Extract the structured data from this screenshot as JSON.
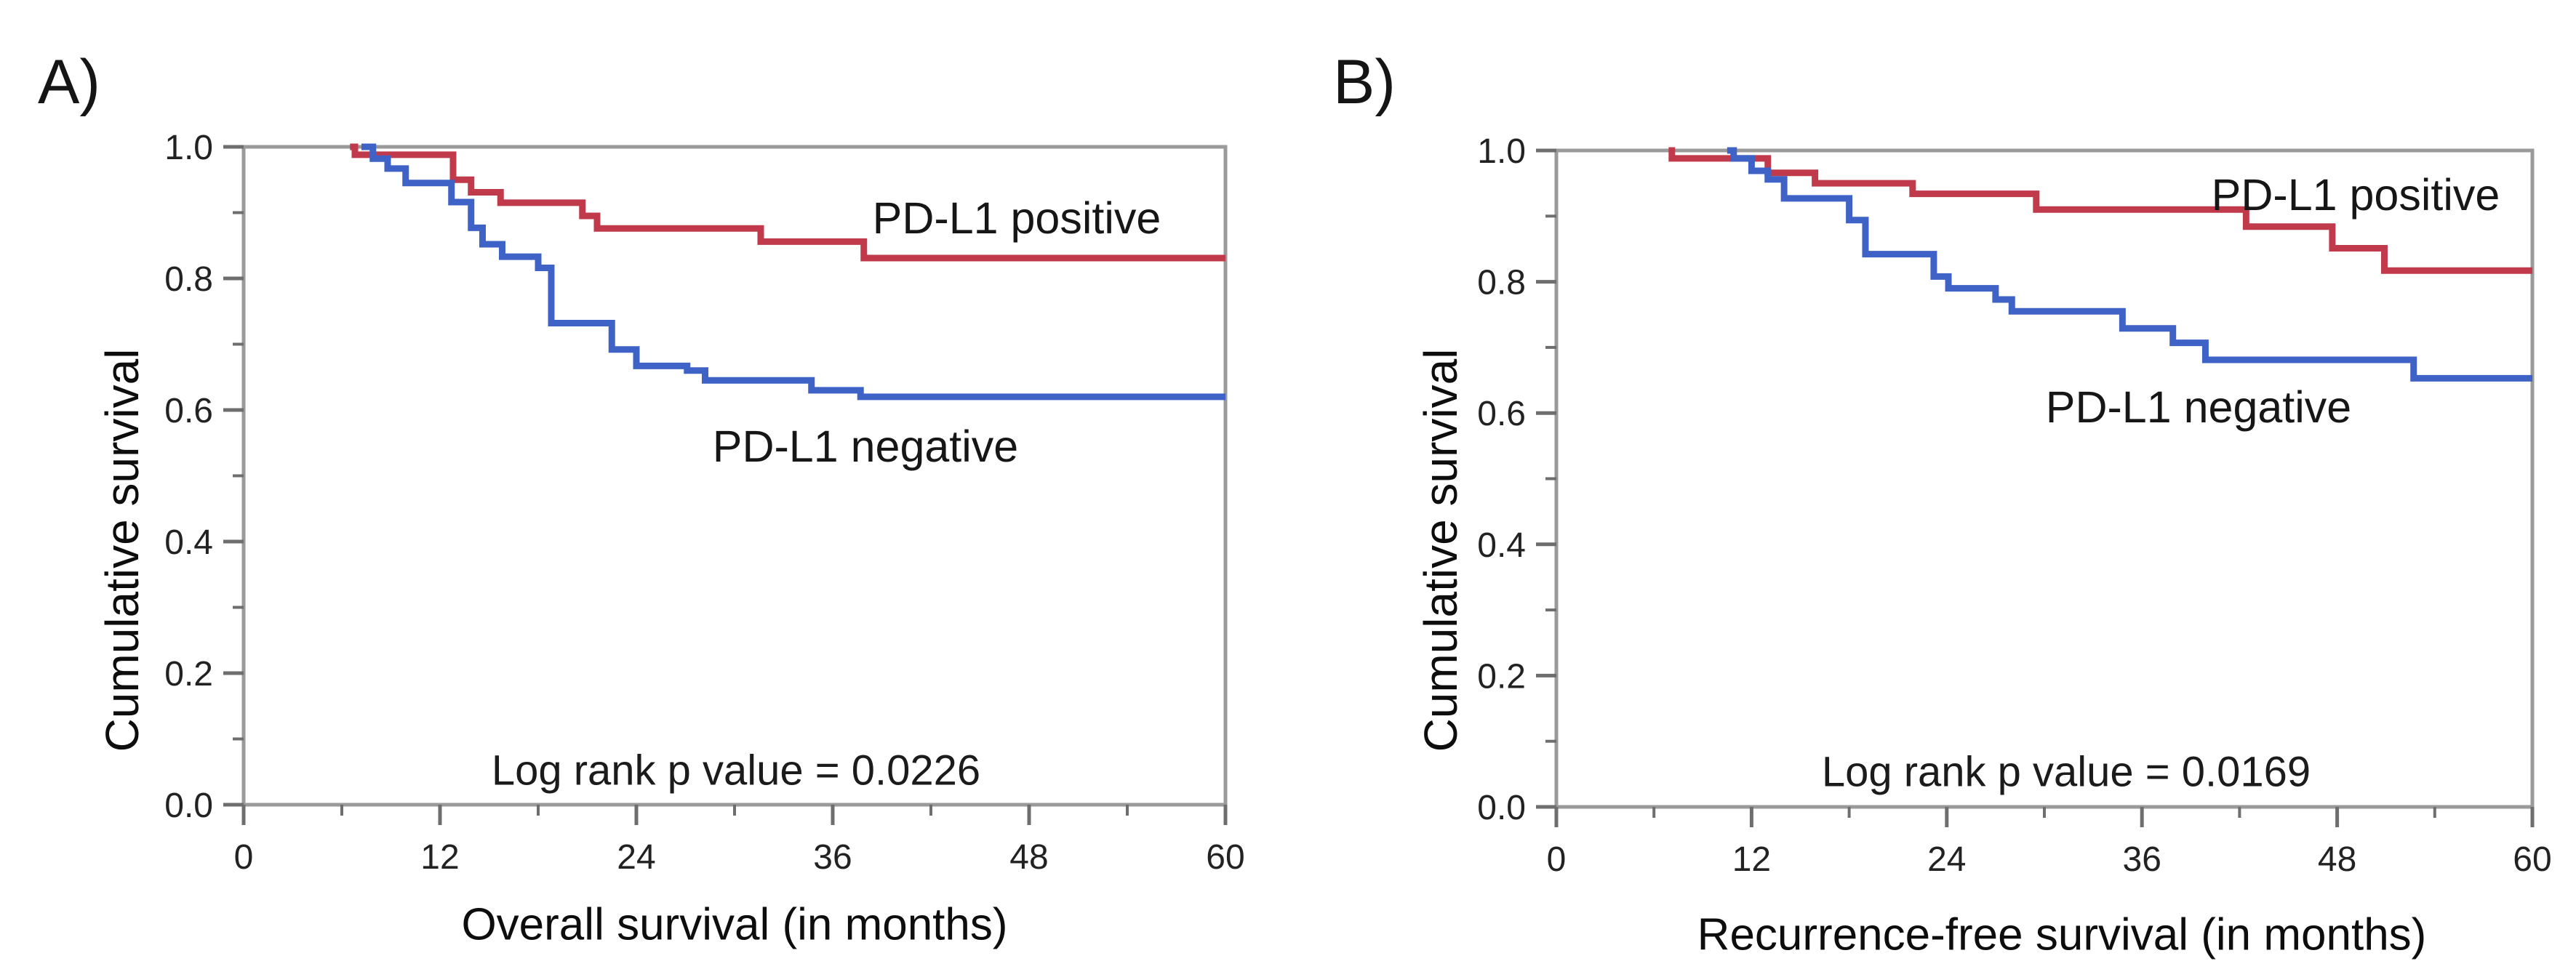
{
  "figure": {
    "background_color": "#ffffff",
    "axis_frame_color": "#9a9a9a",
    "tick_color": "#6e6e6e",
    "tick_label_color": "#222222",
    "positive_color": "#c03a4b",
    "negative_color": "#3f62c6"
  },
  "chart_data": [
    {
      "type": "line",
      "subtype": "kaplan-meier-step",
      "panel_letter": "A)",
      "title": "",
      "xlabel": "Overall survival (in months)",
      "ylabel": "Cumulative survival",
      "annotation": "Log rank p value = 0.0226",
      "xlim": [
        0,
        60
      ],
      "ylim": [
        0.0,
        1.0
      ],
      "xtick_labels": [
        "0",
        "12",
        "24",
        "36",
        "48",
        "60"
      ],
      "ytick_labels": [
        "0.0",
        "0.2",
        "0.4",
        "0.6",
        "0.8",
        "1.0"
      ],
      "x_minor_ticks": [
        6,
        18,
        30,
        42,
        54
      ],
      "y_minor_ticks": [
        0.1,
        0.3,
        0.5,
        0.7,
        0.9
      ],
      "grid": false,
      "legend_position": "inline-labels",
      "series": [
        {
          "name": "PD-L1 positive",
          "color": "#c03a4b",
          "points": [
            [
              6.5,
              1.0
            ],
            [
              6.8,
              0.988
            ],
            [
              12.8,
              0.95
            ],
            [
              13.9,
              0.931
            ],
            [
              15.7,
              0.915
            ],
            [
              20.7,
              0.895
            ],
            [
              21.6,
              0.876
            ],
            [
              31.6,
              0.856
            ],
            [
              37.9,
              0.831
            ],
            [
              60,
              0.831
            ]
          ]
        },
        {
          "name": "PD-L1 negative",
          "color": "#3f62c6",
          "points": [
            [
              7.2,
              1.0
            ],
            [
              7.9,
              0.982
            ],
            [
              8.8,
              0.967
            ],
            [
              9.9,
              0.945
            ],
            [
              12.7,
              0.916
            ],
            [
              13.9,
              0.877
            ],
            [
              14.6,
              0.852
            ],
            [
              15.8,
              0.833
            ],
            [
              18.0,
              0.816
            ],
            [
              18.8,
              0.732
            ],
            [
              22.5,
              0.692
            ],
            [
              24.0,
              0.667
            ],
            [
              27.1,
              0.66
            ],
            [
              28.2,
              0.645
            ],
            [
              34.7,
              0.63
            ],
            [
              37.7,
              0.62
            ],
            [
              60,
              0.62
            ]
          ]
        }
      ]
    },
    {
      "type": "line",
      "subtype": "kaplan-meier-step",
      "panel_letter": "B)",
      "title": "",
      "xlabel": "Recurrence-free survival (in months)",
      "ylabel": "Cumulative survival",
      "annotation": "Log rank p value = 0.0169",
      "xlim": [
        0,
        60
      ],
      "ylim": [
        0.0,
        1.0
      ],
      "xtick_labels": [
        "0",
        "12",
        "24",
        "36",
        "48",
        "60"
      ],
      "ytick_labels": [
        "0.0",
        "0.2",
        "0.4",
        "0.6",
        "0.8",
        "1.0"
      ],
      "x_minor_ticks": [
        6,
        18,
        30,
        42,
        54
      ],
      "y_minor_ticks": [
        0.1,
        0.3,
        0.5,
        0.7,
        0.9
      ],
      "grid": false,
      "legend_position": "inline-labels",
      "series": [
        {
          "name": "PD-L1 positive",
          "color": "#c03a4b",
          "points": [
            [
              6.9,
              1.0
            ],
            [
              7.1,
              0.988
            ],
            [
              13.0,
              0.966
            ],
            [
              15.9,
              0.95
            ],
            [
              21.9,
              0.934
            ],
            [
              29.5,
              0.91
            ],
            [
              42.4,
              0.884
            ],
            [
              47.7,
              0.851
            ],
            [
              50.9,
              0.817
            ],
            [
              60,
              0.817
            ]
          ]
        },
        {
          "name": "PD-L1 negative",
          "color": "#3f62c6",
          "points": [
            [
              10.5,
              1.0
            ],
            [
              10.9,
              0.988
            ],
            [
              12.0,
              0.969
            ],
            [
              13.0,
              0.956
            ],
            [
              14.0,
              0.927
            ],
            [
              18.0,
              0.894
            ],
            [
              19.0,
              0.842
            ],
            [
              23.2,
              0.808
            ],
            [
              24.1,
              0.79
            ],
            [
              27.0,
              0.773
            ],
            [
              28.0,
              0.755
            ],
            [
              34.8,
              0.729
            ],
            [
              37.9,
              0.707
            ],
            [
              39.9,
              0.681
            ],
            [
              52.7,
              0.653
            ],
            [
              60,
              0.653
            ]
          ]
        }
      ]
    }
  ]
}
